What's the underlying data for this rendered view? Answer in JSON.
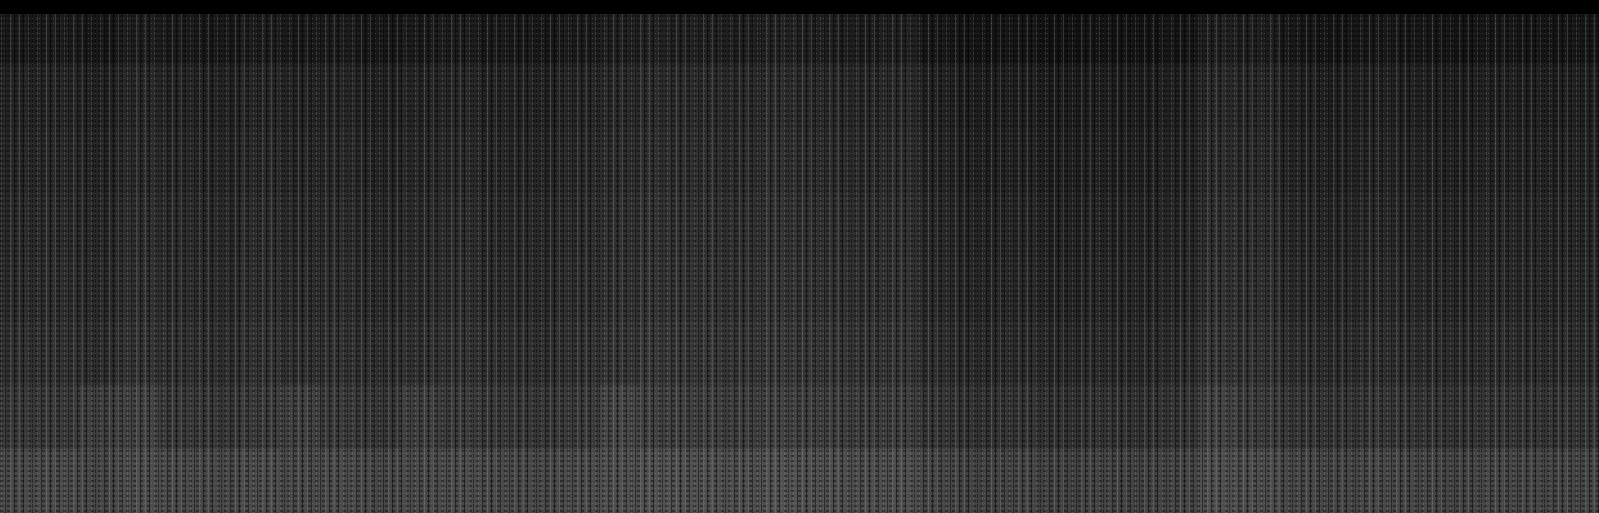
{
  "chart_data": {
    "type": "heatmap",
    "tick_labels": false,
    "cells": [
      [
        26,
        28,
        24,
        30,
        27,
        25,
        29,
        26,
        28,
        24,
        27,
        29,
        26,
        25,
        28,
        32,
        34,
        33,
        31,
        35,
        32,
        30,
        32,
        24,
        20,
        22,
        19,
        21,
        20,
        22,
        32,
        30,
        24,
        22,
        25,
        23,
        21,
        24,
        22,
        23
      ],
      [
        36,
        38,
        34,
        40,
        37,
        35,
        39,
        36,
        38,
        34,
        37,
        39,
        36,
        35,
        38,
        42,
        44,
        43,
        41,
        45,
        42,
        40,
        42,
        34,
        30,
        32,
        29,
        31,
        30,
        32,
        42,
        40,
        34,
        32,
        35,
        33,
        31,
        34,
        32,
        33
      ],
      [
        39,
        41,
        37,
        43,
        40,
        38,
        42,
        39,
        41,
        37,
        40,
        42,
        39,
        38,
        41,
        45,
        47,
        46,
        44,
        48,
        45,
        43,
        45,
        37,
        33,
        35,
        32,
        34,
        33,
        35,
        45,
        43,
        37,
        35,
        38,
        36,
        34,
        37,
        35,
        36
      ],
      [
        42,
        44,
        40,
        46,
        43,
        41,
        45,
        42,
        44,
        40,
        43,
        45,
        42,
        41,
        44,
        48,
        50,
        49,
        47,
        51,
        48,
        46,
        48,
        40,
        36,
        38,
        35,
        37,
        36,
        38,
        48,
        46,
        40,
        38,
        41,
        39,
        37,
        40,
        38,
        39
      ],
      [
        44,
        46,
        42,
        48,
        45,
        43,
        47,
        44,
        46,
        42,
        45,
        47,
        44,
        43,
        46,
        50,
        52,
        51,
        49,
        53,
        50,
        48,
        50,
        42,
        38,
        40,
        37,
        39,
        38,
        40,
        50,
        48,
        42,
        40,
        43,
        41,
        39,
        42,
        40,
        41
      ],
      [
        48,
        50,
        46,
        52,
        49,
        47,
        51,
        48,
        50,
        46,
        49,
        51,
        48,
        47,
        50,
        54,
        56,
        55,
        53,
        57,
        54,
        52,
        54,
        46,
        42,
        44,
        41,
        43,
        42,
        44,
        54,
        52,
        46,
        44,
        47,
        45,
        43,
        46,
        44,
        45
      ],
      [
        56,
        58,
        62,
        66,
        57,
        55,
        59,
        64,
        58,
        54,
        63,
        59,
        56,
        55,
        58,
        70,
        64,
        63,
        61,
        65,
        62,
        60,
        62,
        54,
        50,
        52,
        49,
        51,
        50,
        52,
        66,
        60,
        54,
        52,
        55,
        53,
        51,
        54,
        52,
        53
      ],
      [
        72,
        74,
        70,
        76,
        73,
        71,
        75,
        72,
        74,
        70,
        73,
        75,
        72,
        71,
        74,
        78,
        80,
        79,
        77,
        81,
        78,
        76,
        78,
        70,
        66,
        68,
        65,
        67,
        66,
        68,
        78,
        76,
        70,
        68,
        71,
        69,
        67,
        70,
        68,
        69
      ]
    ]
  }
}
